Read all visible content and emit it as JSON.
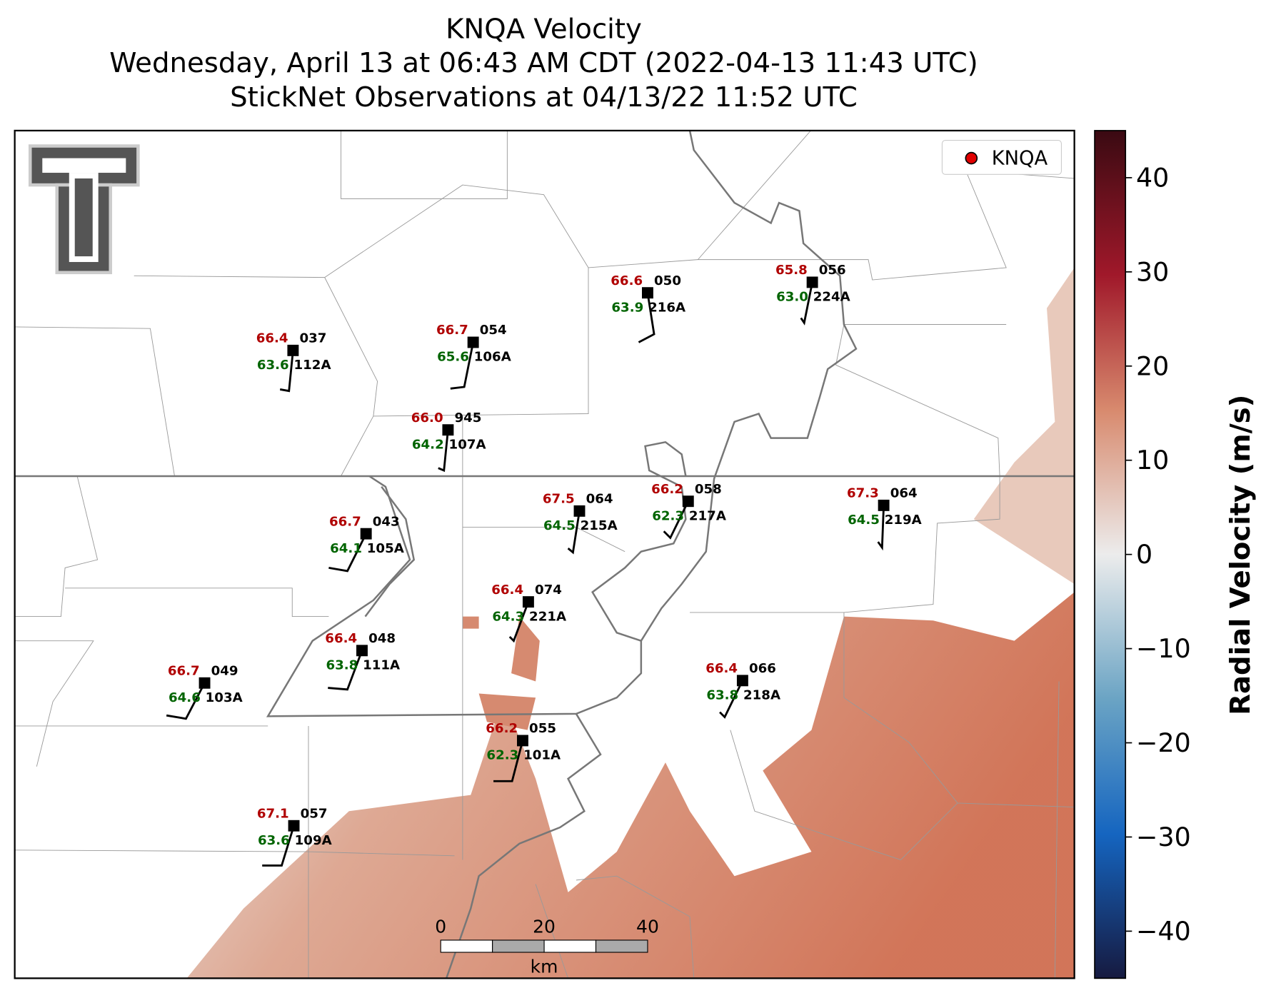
{
  "title": [
    "KNQA Velocity",
    "Wednesday, April 13 at 06:43 AM CDT (2022-04-13 11:43 UTC)",
    "StickNet Observations at 04/13/22 11:52 UTC"
  ],
  "legend": {
    "label": "KNQA",
    "color": "#e00000"
  },
  "stations": [
    {
      "temp": "66.4",
      "code": "037",
      "dew": "63.6",
      "id": "112A"
    },
    {
      "temp": "66.7",
      "code": "054",
      "dew": "65.6",
      "id": "106A"
    },
    {
      "temp": "66.6",
      "code": "050",
      "dew": "63.9",
      "id": "216A"
    },
    {
      "temp": "65.8",
      "code": "056",
      "dew": "63.0",
      "id": "224A"
    },
    {
      "temp": "66.0",
      "code": "945",
      "dew": "64.2",
      "id": "107A"
    },
    {
      "temp": "67.5",
      "code": "064",
      "dew": "64.5",
      "id": "215A"
    },
    {
      "temp": "66.2",
      "code": "058",
      "dew": "62.3",
      "id": "217A"
    },
    {
      "temp": "67.3",
      "code": "064",
      "dew": "64.5",
      "id": "219A"
    },
    {
      "temp": "66.7",
      "code": "043",
      "dew": "64.1",
      "id": "105A"
    },
    {
      "temp": "66.4",
      "code": "074",
      "dew": "64.3",
      "id": "221A"
    },
    {
      "temp": "66.4",
      "code": "048",
      "dew": "63.8",
      "id": "111A"
    },
    {
      "temp": "66.7",
      "code": "049",
      "dew": "64.6",
      "id": "103A"
    },
    {
      "temp": "66.4",
      "code": "066",
      "dew": "63.8",
      "id": "218A"
    },
    {
      "temp": "66.2",
      "code": "055",
      "dew": "62.3",
      "id": "101A"
    },
    {
      "temp": "67.1",
      "code": "057",
      "dew": "63.6",
      "id": "109A"
    }
  ],
  "scale_bar": {
    "ticks": [
      0,
      20,
      40
    ],
    "unit": "km"
  },
  "colorbar": {
    "label": "Radial Velocity (m/s)",
    "ylim": [
      -45,
      45
    ],
    "yticks": [
      {
        "value": -40,
        "label": "−40"
      },
      {
        "value": -30,
        "label": "−30"
      },
      {
        "value": -20,
        "label": "−20"
      },
      {
        "value": -10,
        "label": "−10"
      },
      0,
      10,
      20,
      30,
      40
    ]
  }
}
